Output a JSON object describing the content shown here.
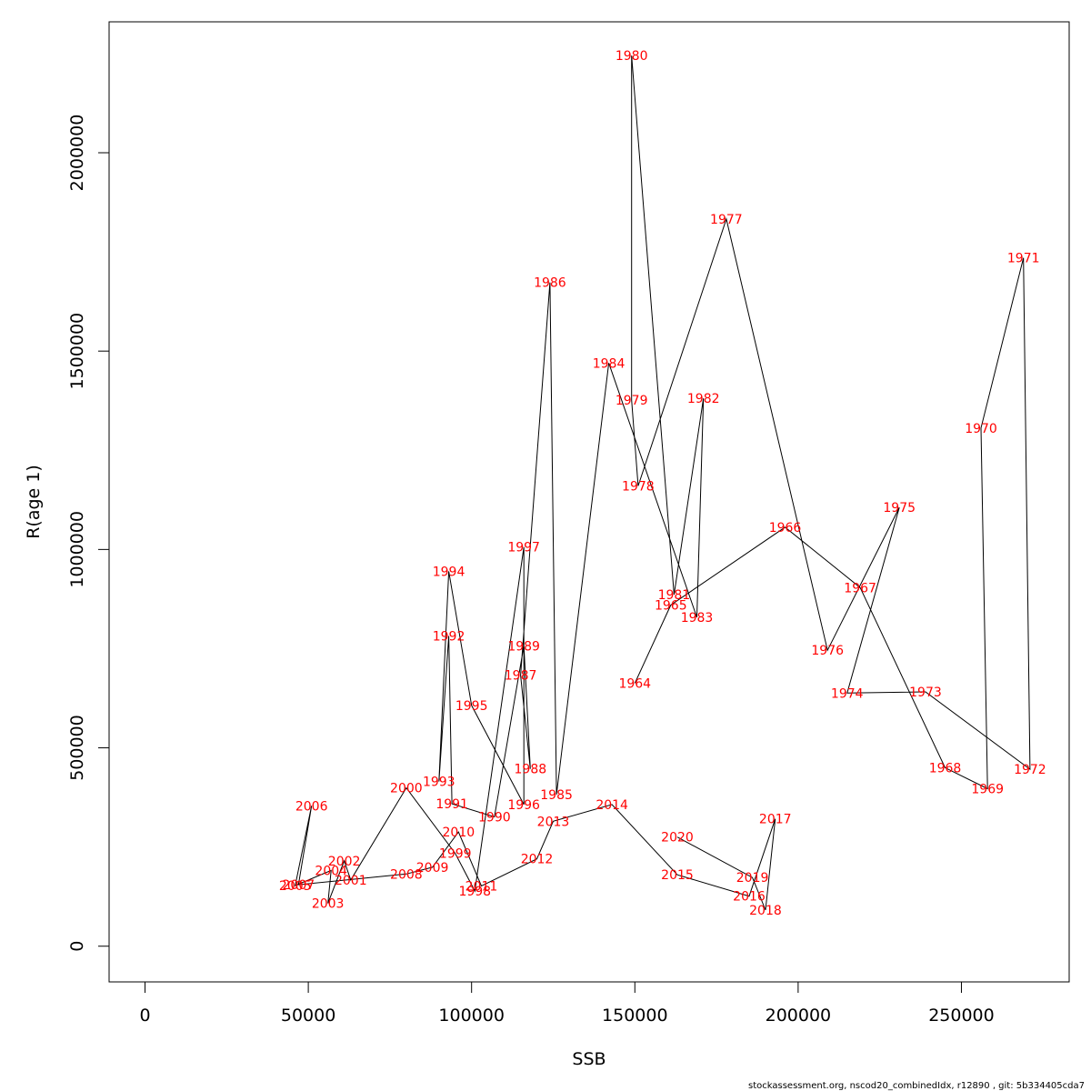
{
  "chart_data": {
    "type": "line",
    "title": "",
    "xlabel": "SSB",
    "ylabel": "R(age 1)",
    "xlim": [
      -11000,
      283000
    ],
    "ylim": [
      -90000,
      2330000
    ],
    "x_ticks": [
      0,
      50000,
      100000,
      150000,
      200000,
      250000
    ],
    "x_tick_labels": [
      "0",
      "50000",
      "100000",
      "150000",
      "200000",
      "250000"
    ],
    "y_ticks": [
      0,
      500000,
      1000000,
      1500000,
      2000000
    ],
    "y_tick_labels": [
      "0",
      "500000",
      "1000000",
      "1500000",
      "2000000"
    ],
    "grid": false,
    "line_color": "#000000",
    "label_color": "#ff0000",
    "series": [
      {
        "points": [
          {
            "year": "1964",
            "x": 150000,
            "y": 663000
          },
          {
            "year": "1965",
            "x": 161000,
            "y": 860000
          },
          {
            "year": "1966",
            "x": 196000,
            "y": 1056000
          },
          {
            "year": "1967",
            "x": 219000,
            "y": 904000
          },
          {
            "year": "1968",
            "x": 245000,
            "y": 450000
          },
          {
            "year": "1969",
            "x": 258000,
            "y": 397000
          },
          {
            "year": "1970",
            "x": 256000,
            "y": 1306000
          },
          {
            "year": "1971",
            "x": 269000,
            "y": 1735000
          },
          {
            "year": "1972",
            "x": 271000,
            "y": 446000
          },
          {
            "year": "1973",
            "x": 239000,
            "y": 641000
          },
          {
            "year": "1974",
            "x": 215000,
            "y": 638000
          },
          {
            "year": "1975",
            "x": 231000,
            "y": 1106000
          },
          {
            "year": "1976",
            "x": 209000,
            "y": 746000
          },
          {
            "year": "1977",
            "x": 178000,
            "y": 1833000
          },
          {
            "year": "1978",
            "x": 151000,
            "y": 1160000
          },
          {
            "year": "1979",
            "x": 149000,
            "y": 1377000
          },
          {
            "year": "1980",
            "x": 149000,
            "y": 2245000
          },
          {
            "year": "1981",
            "x": 162000,
            "y": 886000
          },
          {
            "year": "1982",
            "x": 171000,
            "y": 1381000
          },
          {
            "year": "1983",
            "x": 169000,
            "y": 829000
          },
          {
            "year": "1984",
            "x": 142000,
            "y": 1470000
          },
          {
            "year": "1985",
            "x": 126000,
            "y": 382000
          },
          {
            "year": "1986",
            "x": 124000,
            "y": 1673000
          },
          {
            "year": "1987",
            "x": 115000,
            "y": 683000
          },
          {
            "year": "1988",
            "x": 118000,
            "y": 447000
          },
          {
            "year": "1989",
            "x": 116000,
            "y": 757000
          },
          {
            "year": "1990",
            "x": 107000,
            "y": 326000
          },
          {
            "year": "1991",
            "x": 94000,
            "y": 359000
          },
          {
            "year": "1992",
            "x": 93000,
            "y": 782000
          },
          {
            "year": "1993",
            "x": 90000,
            "y": 415000
          },
          {
            "year": "1994",
            "x": 93000,
            "y": 945000
          },
          {
            "year": "1995",
            "x": 100000,
            "y": 607000
          },
          {
            "year": "1996",
            "x": 116000,
            "y": 357000
          },
          {
            "year": "1997",
            "x": 116000,
            "y": 1006000
          },
          {
            "year": "1998",
            "x": 101000,
            "y": 139000
          },
          {
            "year": "1999",
            "x": 95000,
            "y": 234000
          },
          {
            "year": "2000",
            "x": 80000,
            "y": 399000
          },
          {
            "year": "2001",
            "x": 63000,
            "y": 167000
          },
          {
            "year": "2002",
            "x": 61000,
            "y": 215000
          },
          {
            "year": "2003",
            "x": 56000,
            "y": 108000
          },
          {
            "year": "2004",
            "x": 57000,
            "y": 191000
          },
          {
            "year": "2005",
            "x": 46000,
            "y": 153000
          },
          {
            "year": "2006",
            "x": 51000,
            "y": 354000
          },
          {
            "year": "2007",
            "x": 47000,
            "y": 155000
          },
          {
            "year": "2008",
            "x": 80000,
            "y": 182000
          },
          {
            "year": "2009",
            "x": 88000,
            "y": 199000
          },
          {
            "year": "2010",
            "x": 96000,
            "y": 288000
          },
          {
            "year": "2011",
            "x": 103000,
            "y": 152000
          },
          {
            "year": "2012",
            "x": 120000,
            "y": 220000
          },
          {
            "year": "2013",
            "x": 125000,
            "y": 315000
          },
          {
            "year": "2014",
            "x": 143000,
            "y": 357000
          },
          {
            "year": "2015",
            "x": 163000,
            "y": 180000
          },
          {
            "year": "2016",
            "x": 185000,
            "y": 126000
          },
          {
            "year": "2017",
            "x": 193000,
            "y": 321000
          },
          {
            "year": "2018",
            "x": 190000,
            "y": 91000
          },
          {
            "year": "2019",
            "x": 186000,
            "y": 173000
          },
          {
            "year": "2020",
            "x": 163000,
            "y": 275000
          }
        ]
      }
    ]
  },
  "footer": "stockassessment.org, nscod20_combinedIdx, r12890 , git: 5b334405cda7"
}
